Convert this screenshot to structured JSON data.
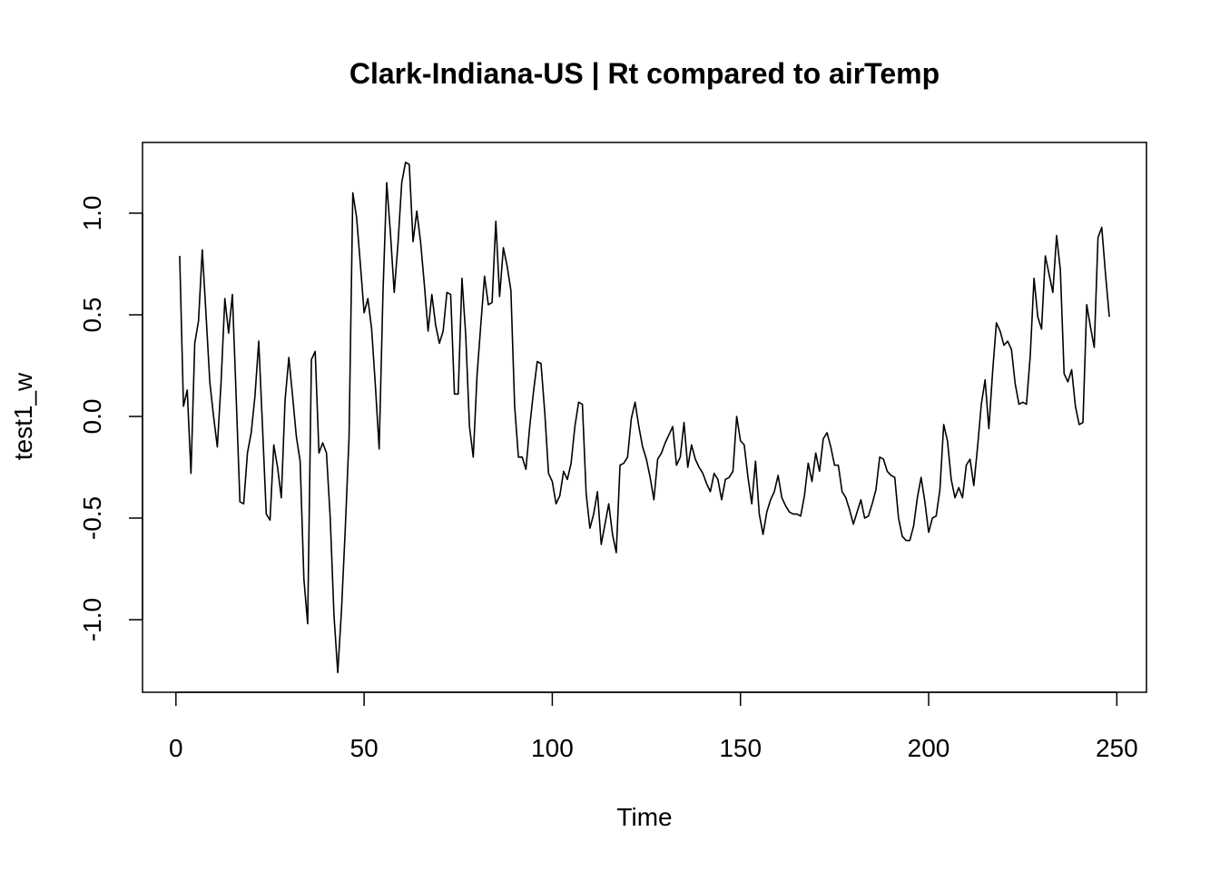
{
  "chart_data": {
    "type": "line",
    "title": "Clark-Indiana-US | Rt compared to airTemp",
    "x_label": "Time",
    "y_label": "test1_w",
    "color": "#000000",
    "x": [
      1,
      2,
      3,
      4,
      5,
      6,
      7,
      8,
      9,
      10,
      11,
      12,
      13,
      14,
      15,
      16,
      17,
      18,
      19,
      20,
      21,
      22,
      23,
      24,
      25,
      26,
      27,
      28,
      29,
      30,
      31,
      32,
      33,
      34,
      35,
      36,
      37,
      38,
      39,
      40,
      41,
      42,
      43,
      44,
      45,
      46,
      47,
      48,
      49,
      50,
      51,
      52,
      53,
      54,
      55,
      56,
      57,
      58,
      59,
      60,
      61,
      62,
      63,
      64,
      65,
      66,
      67,
      68,
      69,
      70,
      71,
      72,
      73,
      74,
      75,
      76,
      77,
      78,
      79,
      80,
      81,
      82,
      83,
      84,
      85,
      86,
      87,
      88,
      89,
      90,
      91,
      92,
      93,
      94,
      95,
      96,
      97,
      98,
      99,
      100,
      101,
      102,
      103,
      104,
      105,
      106,
      107,
      108,
      109,
      110,
      111,
      112,
      113,
      114,
      115,
      116,
      117,
      118,
      119,
      120,
      121,
      122,
      123,
      124,
      125,
      126,
      127,
      128,
      129,
      130,
      131,
      132,
      133,
      134,
      135,
      136,
      137,
      138,
      139,
      140,
      141,
      142,
      143,
      144,
      145,
      146,
      147,
      148,
      149,
      150,
      151,
      152,
      153,
      154,
      155,
      156,
      157,
      158,
      159,
      160,
      161,
      162,
      163,
      164,
      165,
      166,
      167,
      168,
      169,
      170,
      171,
      172,
      173,
      174,
      175,
      176,
      177,
      178,
      179,
      180,
      181,
      182,
      183,
      184,
      185,
      186,
      187,
      188,
      189,
      190,
      191,
      192,
      193,
      194,
      195,
      196,
      197,
      198,
      199,
      200,
      201,
      202,
      203,
      204,
      205,
      206,
      207,
      208,
      209,
      210,
      211,
      212,
      213,
      214,
      215,
      216,
      217,
      218,
      219,
      220,
      221,
      222,
      223,
      224,
      225,
      226,
      227,
      228,
      229,
      230,
      231,
      232,
      233,
      234,
      235,
      236,
      237,
      238,
      239,
      240,
      241,
      242,
      243,
      244,
      245,
      246,
      247,
      248
    ],
    "values": [
      0.79,
      0.05,
      0.13,
      -0.28,
      0.36,
      0.47,
      0.82,
      0.5,
      0.17,
      0.0,
      -0.15,
      0.17,
      0.58,
      0.41,
      0.6,
      0.1,
      -0.42,
      -0.43,
      -0.18,
      -0.08,
      0.1,
      0.37,
      -0.05,
      -0.48,
      -0.51,
      -0.14,
      -0.25,
      -0.4,
      0.08,
      0.29,
      0.1,
      -0.1,
      -0.22,
      -0.8,
      -1.02,
      0.28,
      0.32,
      -0.18,
      -0.13,
      -0.18,
      -0.5,
      -0.98,
      -1.26,
      -0.95,
      -0.55,
      -0.1,
      1.1,
      0.98,
      0.75,
      0.51,
      0.58,
      0.43,
      0.15,
      -0.16,
      0.6,
      1.15,
      0.9,
      0.61,
      0.85,
      1.15,
      1.25,
      1.24,
      0.86,
      1.01,
      0.86,
      0.65,
      0.42,
      0.6,
      0.45,
      0.36,
      0.42,
      0.61,
      0.6,
      0.11,
      0.11,
      0.68,
      0.4,
      -0.05,
      -0.2,
      0.2,
      0.45,
      0.69,
      0.55,
      0.56,
      0.96,
      0.59,
      0.83,
      0.74,
      0.62,
      0.05,
      -0.2,
      -0.2,
      -0.26,
      -0.05,
      0.12,
      0.27,
      0.26,
      0.02,
      -0.28,
      -0.32,
      -0.43,
      -0.39,
      -0.27,
      -0.31,
      -0.23,
      -0.05,
      0.07,
      0.06,
      -0.38,
      -0.55,
      -0.48,
      -0.37,
      -0.63,
      -0.53,
      -0.43,
      -0.58,
      -0.67,
      -0.24,
      -0.23,
      -0.2,
      -0.01,
      0.07,
      -0.05,
      -0.15,
      -0.21,
      -0.3,
      -0.41,
      -0.21,
      -0.18,
      -0.13,
      -0.09,
      -0.05,
      -0.24,
      -0.2,
      -0.03,
      -0.25,
      -0.14,
      -0.21,
      -0.25,
      -0.28,
      -0.33,
      -0.37,
      -0.28,
      -0.31,
      -0.41,
      -0.31,
      -0.3,
      -0.27,
      0.0,
      -0.12,
      -0.14,
      -0.3,
      -0.43,
      -0.22,
      -0.48,
      -0.58,
      -0.47,
      -0.41,
      -0.37,
      -0.29,
      -0.4,
      -0.44,
      -0.47,
      -0.48,
      -0.48,
      -0.49,
      -0.39,
      -0.23,
      -0.32,
      -0.18,
      -0.27,
      -0.11,
      -0.08,
      -0.15,
      -0.24,
      -0.24,
      -0.37,
      -0.4,
      -0.46,
      -0.53,
      -0.47,
      -0.41,
      -0.5,
      -0.49,
      -0.43,
      -0.36,
      -0.2,
      -0.21,
      -0.27,
      -0.29,
      -0.3,
      -0.5,
      -0.59,
      -0.61,
      -0.61,
      -0.54,
      -0.4,
      -0.3,
      -0.42,
      -0.57,
      -0.5,
      -0.49,
      -0.36,
      -0.04,
      -0.12,
      -0.31,
      -0.4,
      -0.35,
      -0.4,
      -0.24,
      -0.21,
      -0.34,
      -0.15,
      0.06,
      0.18,
      -0.06,
      0.22,
      0.46,
      0.42,
      0.35,
      0.37,
      0.33,
      0.16,
      0.06,
      0.07,
      0.06,
      0.3,
      0.68,
      0.49,
      0.43,
      0.79,
      0.7,
      0.61,
      0.89,
      0.72,
      0.21,
      0.17,
      0.23,
      0.05,
      -0.04,
      -0.03,
      0.55,
      0.44,
      0.34,
      0.88,
      0.93,
      0.7,
      0.49
    ],
    "xlim": [
      -8.88,
      257.88
    ],
    "ylim": [
      -1.357,
      1.348
    ],
    "xticks": [
      0,
      50,
      100,
      150,
      200,
      250
    ],
    "yticks": [
      {
        "value": -1.0,
        "label": "-1.0"
      },
      -0.5,
      {
        "value": 0.0,
        "label": "0.0"
      },
      0.5,
      {
        "value": 1.0,
        "label": "1.0"
      }
    ]
  }
}
